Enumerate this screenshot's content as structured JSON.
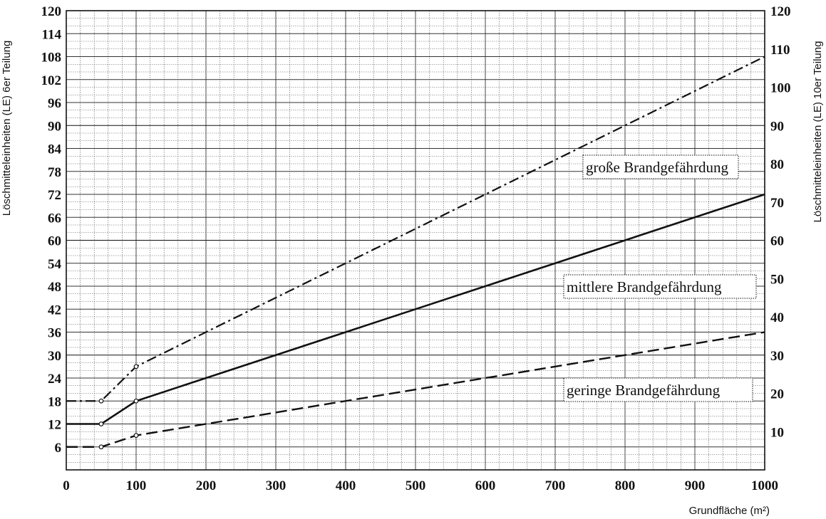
{
  "chart_data": {
    "type": "line",
    "xlabel": "Grundfläche (m²)",
    "ylabel_left": "Löschmitteleinheiten (LE) 6er Teilung",
    "ylabel_right": "Löschmitteleinheiten (LE) 10er Teilung",
    "xlim": [
      0,
      1000
    ],
    "ylim": [
      0,
      120
    ],
    "x_ticks": [
      "0",
      "100",
      "200",
      "300",
      "400",
      "500",
      "600",
      "700",
      "800",
      "900",
      "1000"
    ],
    "y_ticks_left": [
      "6",
      "12",
      "18",
      "24",
      "30",
      "36",
      "42",
      "48",
      "54",
      "60",
      "66",
      "72",
      "78",
      "84",
      "90",
      "96",
      "102",
      "108",
      "114",
      "120"
    ],
    "y_ticks_right": [
      "10",
      "20",
      "30",
      "40",
      "50",
      "60",
      "70",
      "80",
      "90",
      "100",
      "110",
      "120"
    ],
    "grid": true,
    "series": [
      {
        "name": "große Brandgefährdung",
        "style": "dash-dot",
        "points": [
          [
            0,
            18
          ],
          [
            50,
            18
          ],
          [
            100,
            27
          ],
          [
            1000,
            108
          ]
        ]
      },
      {
        "name": "mittlere Brandgefährdung",
        "style": "solid",
        "points": [
          [
            0,
            12
          ],
          [
            50,
            12
          ],
          [
            100,
            18
          ],
          [
            1000,
            72
          ]
        ]
      },
      {
        "name": "geringe Brandgefährdung",
        "style": "dashed",
        "points": [
          [
            0,
            6
          ],
          [
            50,
            6
          ],
          [
            100,
            9
          ],
          [
            1000,
            36
          ]
        ]
      }
    ]
  }
}
